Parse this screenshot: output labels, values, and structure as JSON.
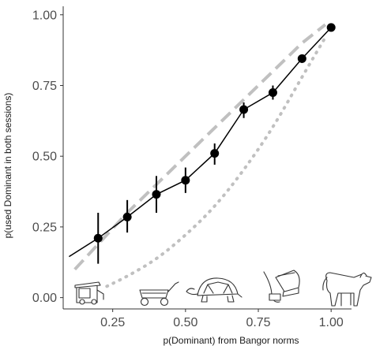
{
  "chart_data": {
    "type": "line",
    "title": "",
    "xlabel": "p(Dominant) from Bangor norms",
    "ylabel": "p(used Dominant in both sessions)",
    "xlim": [
      0.08,
      1.07
    ],
    "ylim": [
      -0.04,
      1.03
    ],
    "x_ticks": [
      0.25,
      0.5,
      0.75,
      1.0
    ],
    "x_tick_labels": [
      "0.25",
      "0.50",
      "0.75",
      "1.00"
    ],
    "y_ticks": [
      0.0,
      0.25,
      0.5,
      0.75,
      1.0
    ],
    "y_tick_labels": [
      "0.00",
      "0.25",
      "0.50",
      "0.75",
      "1.00"
    ],
    "grid": false,
    "series": [
      {
        "style": "points-with-errorbars-and-line",
        "color": "#000000",
        "x": [
          0.2,
          0.3,
          0.4,
          0.5,
          0.6,
          0.7,
          0.8,
          0.9,
          1.0
        ],
        "values": [
          0.21,
          0.285,
          0.365,
          0.415,
          0.51,
          0.665,
          0.725,
          0.845,
          0.955
        ],
        "error_low": [
          0.12,
          0.23,
          0.3,
          0.37,
          0.47,
          0.635,
          0.7,
          0.83,
          0.945
        ],
        "error_high": [
          0.3,
          0.345,
          0.43,
          0.46,
          0.545,
          0.69,
          0.75,
          0.86,
          0.965
        ]
      },
      {
        "style": "dashed",
        "color": "#c0c0c0",
        "x": [
          0.12,
          0.3,
          0.5,
          0.7,
          0.9,
          0.98
        ],
        "values": [
          0.1,
          0.3,
          0.5,
          0.7,
          0.9,
          0.965
        ]
      },
      {
        "style": "dotted",
        "color": "#c0c0c0",
        "x": [
          0.23,
          0.3,
          0.4,
          0.5,
          0.6,
          0.7,
          0.8,
          0.9,
          0.98
        ],
        "values": [
          0.04,
          0.075,
          0.135,
          0.22,
          0.32,
          0.45,
          0.6,
          0.78,
          0.92
        ]
      }
    ],
    "pictures": [
      {
        "name": "trash-can-icon",
        "x": 0.2
      },
      {
        "name": "wagon-icon",
        "x": 0.4
      },
      {
        "name": "turtle-icon",
        "x": 0.6
      },
      {
        "name": "iron-icon",
        "x": 0.8
      },
      {
        "name": "dog-icon",
        "x": 1.0
      }
    ]
  }
}
